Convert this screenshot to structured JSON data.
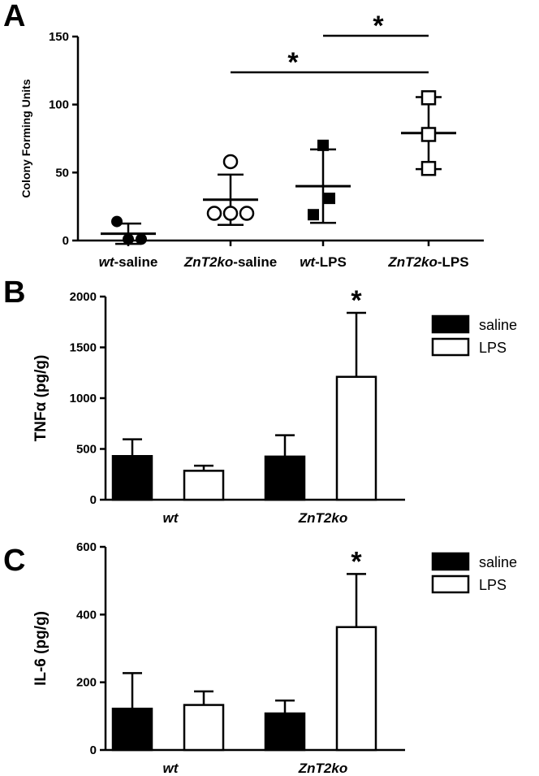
{
  "chart_data": [
    {
      "panel": "A",
      "type": "scatter",
      "ylabel": "Colony Forming Units",
      "ylim": [
        0,
        150
      ],
      "yticks": [
        "0",
        "50",
        "100",
        "150"
      ],
      "categories": [
        {
          "italic": "wt",
          "suffix": "-saline"
        },
        {
          "italic": "ZnT2ko",
          "suffix": "-saline"
        },
        {
          "italic": "wt",
          "suffix": "-LPS"
        },
        {
          "italic": "ZnT2ko",
          "suffix": "-LPS"
        }
      ],
      "groups": [
        {
          "marker": "filled-circle",
          "points": [
            14,
            1,
            1
          ],
          "mean": 5,
          "sd": 7.5
        },
        {
          "marker": "open-circle",
          "points": [
            58,
            20,
            20,
            20
          ],
          "mean": 30,
          "sd": 18.5
        },
        {
          "marker": "filled-square",
          "points": [
            70,
            31,
            19
          ],
          "mean": 40,
          "sd": 27
        },
        {
          "marker": "open-square",
          "points": [
            105,
            78,
            53
          ],
          "mean": 79,
          "sd": 26.5
        }
      ],
      "significance": [
        {
          "from": 2,
          "to": 3,
          "label": "*"
        },
        {
          "from": 1,
          "to": 3,
          "label": "*"
        }
      ]
    },
    {
      "panel": "B",
      "type": "bar",
      "ylabel": "TNFα (pg/g)",
      "ylim": [
        0,
        2000
      ],
      "yticks": [
        "0",
        "500",
        "1000",
        "1500",
        "2000"
      ],
      "categories": [
        {
          "italic": "wt"
        },
        {
          "italic": "ZnT2ko"
        }
      ],
      "series": [
        {
          "name": "saline",
          "fill": "#000000",
          "values": [
            430,
            425
          ],
          "errors": [
            165,
            210
          ]
        },
        {
          "name": "LPS",
          "fill": "#ffffff",
          "values": [
            285,
            1210
          ],
          "errors": [
            50,
            630
          ]
        }
      ],
      "annotations": [
        {
          "category": 1,
          "series": 1,
          "label": "*"
        }
      ]
    },
    {
      "panel": "C",
      "type": "bar",
      "ylabel": "IL-6 (pg/g)",
      "ylim": [
        0,
        600
      ],
      "yticks": [
        "0",
        "200",
        "400",
        "600"
      ],
      "categories": [
        {
          "italic": "wt"
        },
        {
          "italic": "ZnT2ko"
        }
      ],
      "series": [
        {
          "name": "saline",
          "fill": "#000000",
          "values": [
            122,
            108
          ],
          "errors": [
            105,
            38
          ]
        },
        {
          "name": "LPS",
          "fill": "#ffffff",
          "values": [
            133,
            363
          ],
          "errors": [
            40,
            157
          ]
        }
      ],
      "annotations": [
        {
          "category": 1,
          "series": 1,
          "label": "*"
        }
      ]
    }
  ]
}
